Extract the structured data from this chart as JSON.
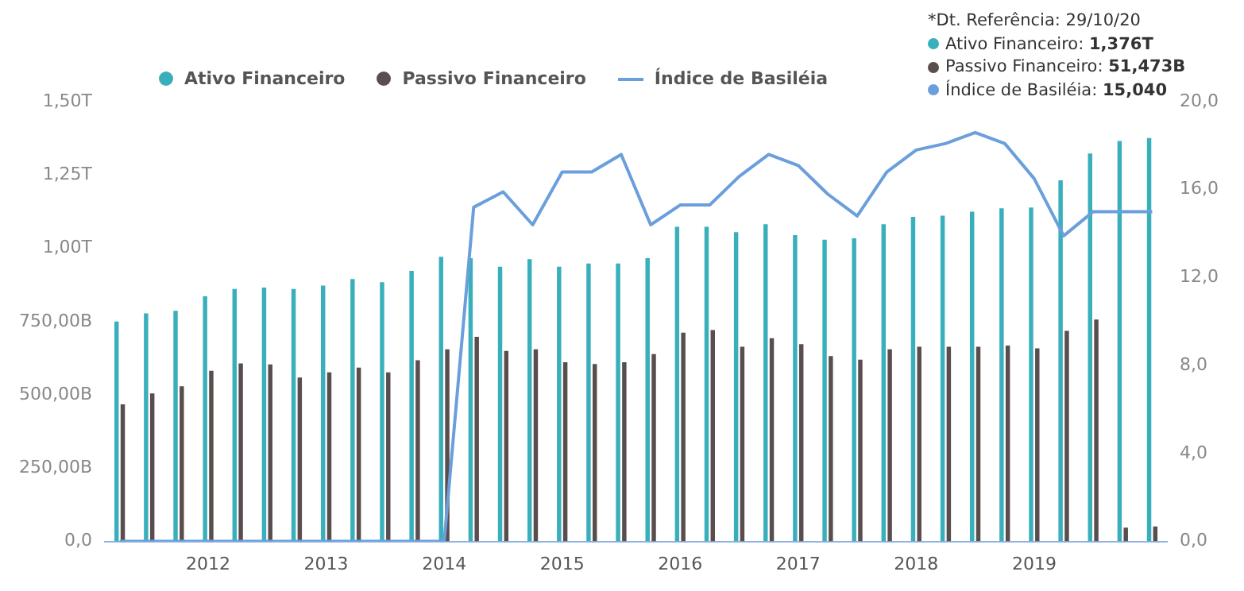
{
  "chart_data": {
    "type": "bar",
    "categories": [
      null,
      null,
      null,
      "2012",
      null,
      null,
      null,
      "2013",
      null,
      null,
      null,
      "2014",
      null,
      null,
      null,
      "2015",
      null,
      null,
      null,
      "2016",
      null,
      null,
      null,
      "2017",
      null,
      null,
      null,
      "2018",
      null,
      null,
      null,
      "2019",
      null,
      null,
      null,
      null
    ],
    "series": [
      {
        "name": "Ativo Financeiro",
        "color": "#3aafbc",
        "values": [
          750000000000.0,
          778000000000.0,
          787000000000.0,
          836000000000.0,
          861000000000.0,
          866000000000.0,
          861000000000.0,
          873000000000.0,
          895000000000.0,
          884000000000.0,
          923000000000.0,
          971000000000.0,
          966000000000.0,
          937000000000.0,
          963000000000.0,
          937000000000.0,
          948000000000.0,
          948000000000.0,
          966000000000.0,
          1073000000000.0,
          1073000000000.0,
          1055000000000.0,
          1082000000000.0,
          1045000000000.0,
          1029000000000.0,
          1034000000000.0,
          1082000000000.0,
          1107000000000.0,
          1111000000000.0,
          1125000000000.0,
          1136000000000.0,
          1139000000000.0,
          1232000000000.0,
          1323000000000.0,
          1366000000000.0,
          1376000000000.0
        ]
      },
      {
        "name": "Passivo Financeiro",
        "color": "#5a4d4d",
        "values": [
          468000000000.0,
          505000000000.0,
          529000000000.0,
          582000000000.0,
          607000000000.0,
          604000000000.0,
          559000000000.0,
          577000000000.0,
          593000000000.0,
          577000000000.0,
          618000000000.0,
          655000000000.0,
          698000000000.0,
          650000000000.0,
          655000000000.0,
          611000000000.0,
          605000000000.0,
          611000000000.0,
          639000000000.0,
          712000000000.0,
          721000000000.0,
          664000000000.0,
          693000000000.0,
          673000000000.0,
          632000000000.0,
          620000000000.0,
          655000000000.0,
          664000000000.0,
          664000000000.0,
          664000000000.0,
          668000000000.0,
          659000000000.0,
          718000000000.0,
          757000000000.0,
          47000000000.0,
          51000000000.0
        ]
      },
      {
        "name": "Índice de Basiléia",
        "type": "line",
        "axis": "y2",
        "color": "#6a9fdc",
        "values": [
          0,
          0,
          0,
          0,
          0,
          0,
          0,
          0,
          0,
          0,
          0,
          0,
          15.2,
          15.9,
          14.4,
          16.8,
          16.8,
          17.6,
          14.4,
          15.3,
          15.3,
          16.6,
          17.6,
          17.1,
          15.8,
          14.8,
          16.8,
          17.8,
          18.1,
          18.6,
          18.1,
          16.5,
          13.9,
          15.0,
          15.0,
          15.0
        ]
      }
    ],
    "ylim": [
      0,
      1500000000000.0
    ],
    "yticks": [
      {
        "value": 0,
        "label": "0,0"
      },
      {
        "value": 250000000000.0,
        "label": "250,00B"
      },
      {
        "value": 500000000000.0,
        "label": "500,00B"
      },
      {
        "value": 750000000000.0,
        "label": "750,00B"
      },
      {
        "value": 1000000000000.0,
        "label": "1,00T"
      },
      {
        "value": 1250000000000.0,
        "label": "1,25T"
      },
      {
        "value": 1500000000000.0,
        "label": "1,50T"
      }
    ],
    "y2lim": [
      0,
      20
    ],
    "y2ticks": [
      {
        "value": 0,
        "label": "0,0"
      },
      {
        "value": 4,
        "label": "4,0"
      },
      {
        "value": 8,
        "label": "8,0"
      },
      {
        "value": 12,
        "label": "12,0"
      },
      {
        "value": 16,
        "label": "16,0"
      },
      {
        "value": 20,
        "label": "20,0"
      }
    ],
    "annotations": [
      "*Dt. Referência: 29/10/20",
      "Ativo Financeiro: 1,376T",
      "Passivo Financeiro: 51,473B",
      "Índice de Basiléia: 15,040"
    ],
    "legend": "top",
    "grid": false,
    "marker": "none"
  }
}
